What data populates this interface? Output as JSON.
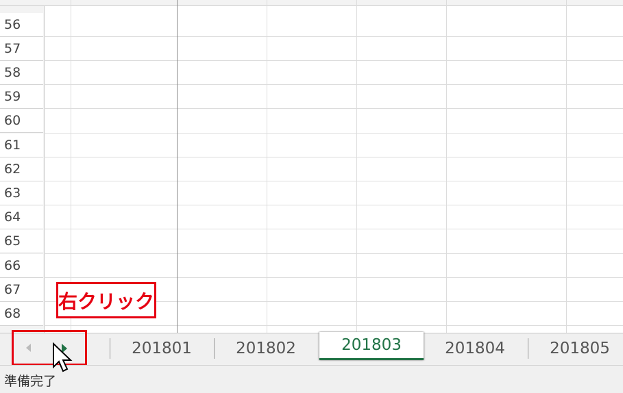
{
  "sheet": {
    "row_headers": [
      "56",
      "57",
      "58",
      "59",
      "60",
      "61",
      "62",
      "63",
      "64",
      "65",
      "66",
      "67",
      "68"
    ]
  },
  "tabs": [
    "201801",
    "201802",
    "201803",
    "201804",
    "201805"
  ],
  "active_tab": 2,
  "annotation": "右クリック",
  "status": "準備完了"
}
